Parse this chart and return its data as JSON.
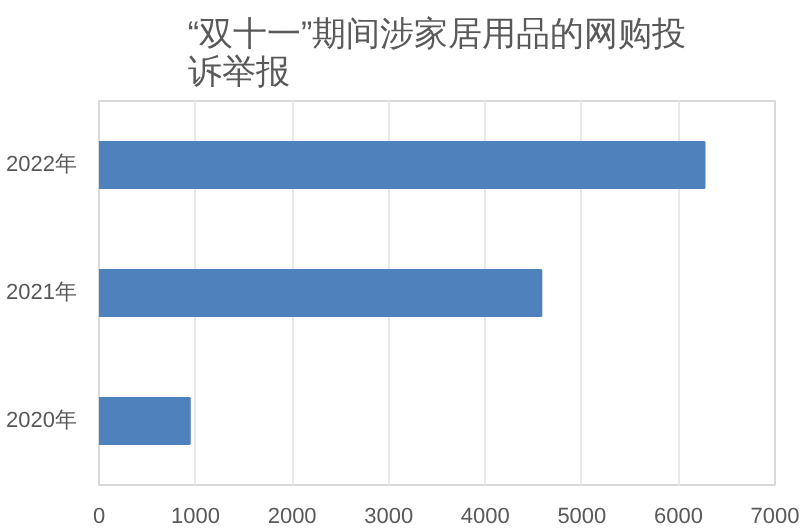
{
  "chart_data": {
    "type": "bar",
    "orientation": "horizontal",
    "title": "“双十一”期间涉家居用品的网购投诉举报",
    "categories": [
      "2022年",
      "2021年",
      "2020年"
    ],
    "values": [
      6270,
      4580,
      940
    ],
    "color": "#4f81bd",
    "xlim": [
      0,
      7000
    ],
    "xticks": [
      0,
      1000,
      2000,
      3000,
      4000,
      5000,
      6000,
      7000
    ],
    "grid": "x"
  }
}
